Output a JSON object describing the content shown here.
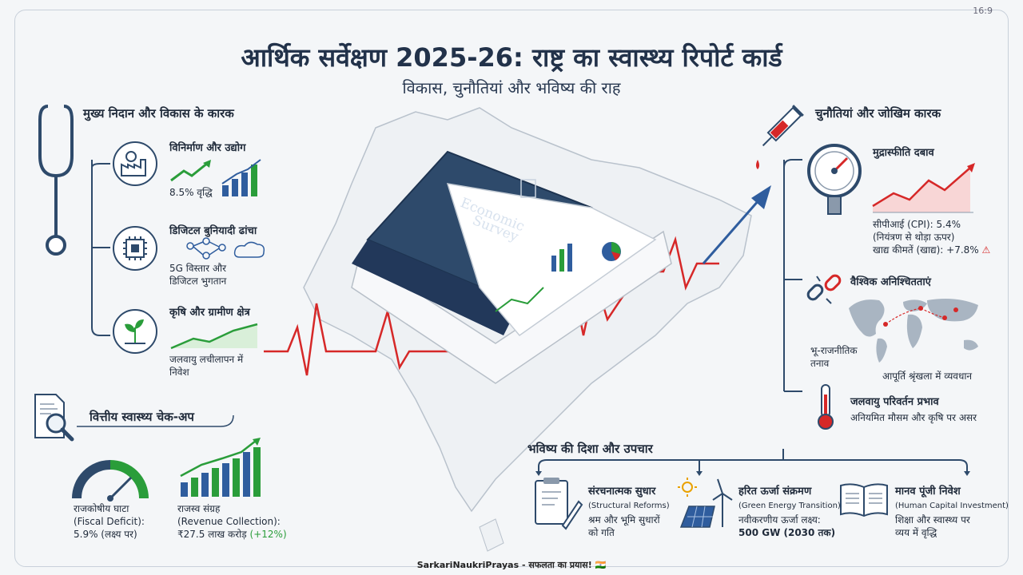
{
  "header": {
    "ratio": "16:9",
    "title": "आर्थिक सर्वेक्षण 2025-26: राष्ट्र का स्वास्थ्य रिपोर्ट कार्ड",
    "subtitle": "विकास, चुनौतियां और भविष्य की राह"
  },
  "book": {
    "title_line1": "Economic",
    "title_line2": "Survey"
  },
  "left": {
    "heading": "मुख्य निदान और विकास के कारक",
    "items": [
      {
        "title": "विनिर्माण और उद्योग",
        "text": "8.5% वृद्धि",
        "icon": "factory-gear-icon"
      },
      {
        "title": "डिजिटल बुनियादी ढांचा",
        "text_line1": "5G विस्तार और",
        "text_line2": "डिजिटल भुगतान",
        "icon": "chip-icon"
      },
      {
        "title": "कृषि और ग्रामीण क्षेत्र",
        "text_line1": "जलवायु लचीलापन में",
        "text_line2": "निवेश",
        "icon": "plant-icon"
      }
    ]
  },
  "fiscal": {
    "heading": "वित्तीय स्वास्थ्य चेक-अप",
    "deficit_line1": "राजकोषीय घाटा",
    "deficit_line2": "(Fiscal Deficit):",
    "deficit_line3": "5.9% (लक्ष्य पर)",
    "revenue_line1": "राजस्व संग्रह",
    "revenue_line2": "(Revenue Collection):",
    "revenue_value": "₹27.5 लाख करोड़",
    "revenue_growth": "(+12%)"
  },
  "right": {
    "heading": "चुनौतियां और जोखिम कारक",
    "inflation": {
      "title": "मुद्रास्फीति दबाव",
      "line1": "सीपीआई (CPI): 5.4%",
      "line2": "(नियंत्रण से थोड़ा ऊपर)",
      "line3": "खाद्य कीमतें (खाद्य): +7.8%"
    },
    "global": {
      "title": "वैश्विक अनिश्चितताएं",
      "label1_line1": "भू-राजनीतिक",
      "label1_line2": "तनाव",
      "label2": "आपूर्ति श्रृंखला में व्यवधान"
    },
    "climate": {
      "title": "जलवायु परिवर्तन प्रभाव",
      "text": "अनियमित मौसम और कृषि पर असर"
    }
  },
  "future": {
    "heading": "भविष्य की दिशा और उपचार",
    "items": [
      {
        "title": "संरचनात्मक सुधार",
        "en": "(Structural Reforms)",
        "line1": "श्रम और भूमि सुधारों",
        "line2": "को गति"
      },
      {
        "title": "हरित ऊर्जा संक्रमण",
        "en": "(Green Energy Transition)",
        "line1": "नवीकरणीय ऊर्जा लक्ष्य:",
        "line2": "500 GW (2030 तक)"
      },
      {
        "title": "मानव पूंजी निवेश",
        "en": "(Human Capital Investment)",
        "line1": "शिक्षा और स्वास्थ्य पर",
        "line2": "व्यय में वृद्धि"
      }
    ]
  },
  "footer": {
    "text": "SarkariNaukriPrayas - सफलता का प्रयास! 🇮🇳"
  },
  "colors": {
    "navy": "#2e4a6b",
    "red": "#d62828",
    "green": "#2a9d3a",
    "blue": "#2f5d9e"
  }
}
